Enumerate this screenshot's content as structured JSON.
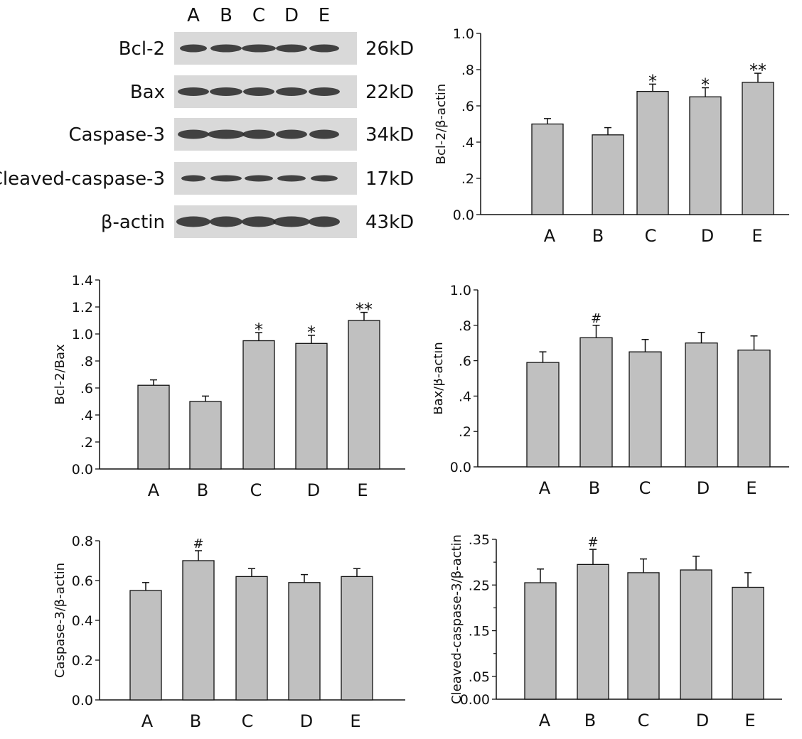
{
  "blot": {
    "lanes": [
      "A",
      "B",
      "C",
      "D",
      "E"
    ],
    "rows": [
      {
        "label": "Bcl-2",
        "size": "26kD"
      },
      {
        "label": "Bax",
        "size": "22kD"
      },
      {
        "label": "Caspase-3",
        "size": "34kD"
      },
      {
        "label": "Cleaved-caspase-3",
        "size": "17kD"
      },
      {
        "label": "β-actin",
        "size": "43kD"
      }
    ]
  },
  "chart_data": [
    {
      "type": "bar",
      "categories": [
        "A",
        "B",
        "C",
        "D",
        "E"
      ],
      "values": [
        0.5,
        0.44,
        0.68,
        0.65,
        0.73
      ],
      "errors": [
        0.03,
        0.04,
        0.04,
        0.05,
        0.05
      ],
      "significance": [
        "",
        "",
        "*",
        "*",
        "**"
      ],
      "ylabel": "Bcl-2/β-actin",
      "ylim": [
        0,
        1.0
      ],
      "ticks": [
        0,
        0.2,
        0.4,
        0.6,
        0.8,
        1.0
      ],
      "tick_labels": [
        "0.0",
        ".2",
        ".4",
        ".6",
        ".8",
        "1.0"
      ],
      "grid": false
    },
    {
      "type": "bar",
      "categories": [
        "A",
        "B",
        "C",
        "D",
        "E"
      ],
      "values": [
        0.62,
        0.5,
        0.95,
        0.93,
        1.1
      ],
      "errors": [
        0.04,
        0.04,
        0.06,
        0.06,
        0.06
      ],
      "significance": [
        "",
        "",
        "*",
        "*",
        "**"
      ],
      "ylabel": "Bcl-2/Bax",
      "ylim": [
        0,
        1.4
      ],
      "ticks": [
        0,
        0.2,
        0.4,
        0.6,
        0.8,
        1.0,
        1.2,
        1.4
      ],
      "tick_labels": [
        "0.0",
        ".2",
        ".4",
        ".6",
        ".8",
        "1.0",
        "1.2",
        "1.4"
      ],
      "grid": false
    },
    {
      "type": "bar",
      "categories": [
        "A",
        "B",
        "C",
        "D",
        "E"
      ],
      "values": [
        0.59,
        0.73,
        0.65,
        0.7,
        0.66
      ],
      "errors": [
        0.06,
        0.07,
        0.07,
        0.06,
        0.08
      ],
      "significance": [
        "",
        "#",
        "",
        "",
        ""
      ],
      "ylabel": "Bax/β-actin",
      "ylim": [
        0,
        1.0
      ],
      "ticks": [
        0,
        0.2,
        0.4,
        0.6,
        0.8,
        1.0
      ],
      "tick_labels": [
        "0.0",
        ".2",
        ".4",
        ".6",
        ".8",
        "1.0"
      ],
      "grid": false
    },
    {
      "type": "bar",
      "categories": [
        "A",
        "B",
        "C",
        "D",
        "E"
      ],
      "values": [
        0.55,
        0.7,
        0.62,
        0.59,
        0.62
      ],
      "errors": [
        0.04,
        0.05,
        0.04,
        0.04,
        0.04
      ],
      "significance": [
        "",
        "#",
        "",
        "",
        ""
      ],
      "ylabel": "Caspase-3/β-actin",
      "ylim": [
        0,
        0.8
      ],
      "ticks": [
        0,
        0.2,
        0.4,
        0.6,
        0.8
      ],
      "tick_labels": [
        "0.0",
        "0.2",
        "0.4",
        "0.6",
        "0.8"
      ],
      "grid": false
    },
    {
      "type": "bar",
      "categories": [
        "A",
        "B",
        "C",
        "D",
        "E"
      ],
      "values": [
        0.255,
        0.295,
        0.277,
        0.283,
        0.245
      ],
      "errors": [
        0.03,
        0.033,
        0.03,
        0.03,
        0.032
      ],
      "significance": [
        "",
        "#",
        "",
        "",
        ""
      ],
      "ylabel": "Cleaved-caspase-3/β-actin",
      "ylim": [
        0,
        0.35
      ],
      "ticks": [
        0,
        0.05,
        0.15,
        0.25,
        0.35
      ],
      "tick_labels": [
        "0.00",
        ".05",
        ".15",
        ".25",
        ".35"
      ],
      "minor_ticks": [
        0.1,
        0.2,
        0.3
      ],
      "grid": false
    }
  ]
}
